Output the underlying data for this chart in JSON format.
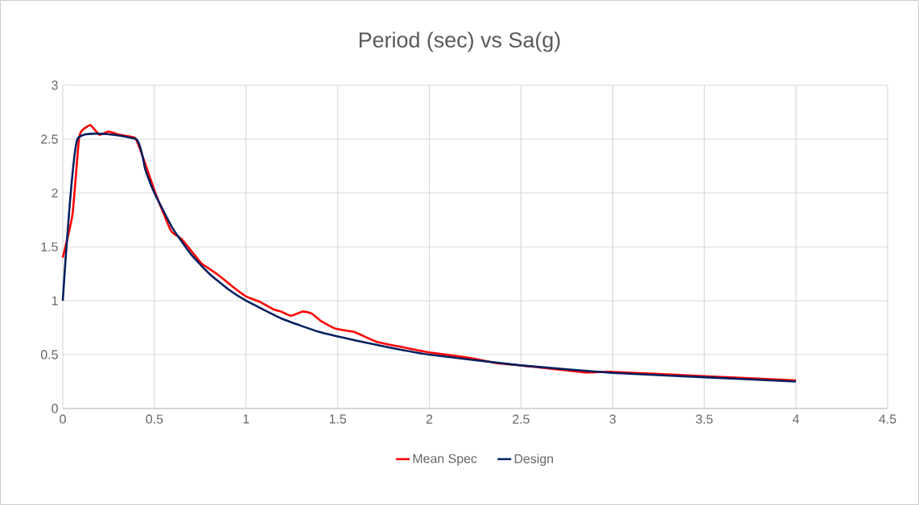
{
  "chart_data": {
    "type": "line",
    "title": "Period (sec) vs Sa(g)",
    "xlim": [
      0,
      4.5
    ],
    "xticks": [
      0,
      0.5,
      1,
      1.5,
      2,
      2.5,
      3,
      3.5,
      4,
      4.5
    ],
    "ylim": [
      0,
      3
    ],
    "yticks": [
      0,
      0.5,
      1,
      1.5,
      2,
      2.5,
      3
    ],
    "grid": true,
    "legend": "bottom",
    "marker": "none",
    "line_style": "solid",
    "series": [
      {
        "name": "Mean Spec",
        "color": "#ff0000",
        "x": [
          0,
          0.053,
          0.088,
          0.105,
          0.15,
          0.2,
          0.25,
          0.31,
          0.395,
          0.44,
          0.505,
          0.59,
          0.65,
          0.755,
          0.84,
          0.92,
          1.0,
          1.075,
          1.15,
          1.19,
          1.245,
          1.31,
          1.36,
          1.41,
          1.49,
          1.59,
          1.71,
          1.85,
          2.0,
          2.22,
          2.37,
          2.5,
          2.85,
          3.0,
          3.5,
          4.0
        ],
        "values": [
          1.4,
          1.8,
          2.5,
          2.58,
          2.63,
          2.54,
          2.57,
          2.54,
          2.51,
          2.32,
          2.0,
          1.65,
          1.57,
          1.35,
          1.25,
          1.14,
          1.04,
          0.99,
          0.92,
          0.9,
          0.86,
          0.9,
          0.88,
          0.81,
          0.74,
          0.71,
          0.62,
          0.57,
          0.52,
          0.47,
          0.42,
          0.4,
          0.335,
          0.34,
          0.3,
          0.26
        ]
      },
      {
        "name": "Design",
        "color": "#002060",
        "x": [
          0,
          0.08,
          0.4,
          0.45,
          0.5,
          0.6,
          0.7,
          0.8,
          0.9,
          1.0,
          1.2,
          1.4,
          1.6,
          1.8,
          2.0,
          2.5,
          3.0,
          3.5,
          4.0
        ],
        "values": [
          1.0,
          2.5,
          2.5,
          2.22,
          2.0,
          1.67,
          1.43,
          1.25,
          1.11,
          1.0,
          0.83,
          0.71,
          0.63,
          0.56,
          0.5,
          0.4,
          0.33,
          0.29,
          0.25
        ]
      }
    ]
  }
}
